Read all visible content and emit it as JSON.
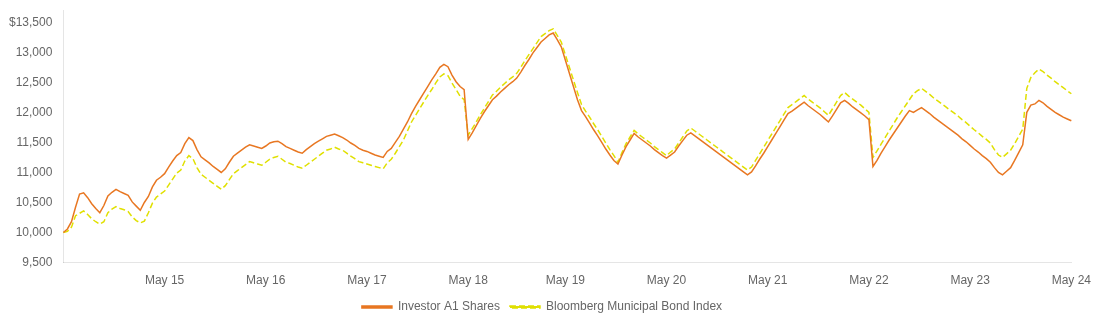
{
  "chart_data": {
    "type": "line",
    "categories": [
      null,
      null,
      null,
      null,
      null,
      null,
      null,
      null,
      null,
      null,
      null,
      null,
      null,
      null,
      null,
      null,
      null,
      null,
      null,
      null,
      null,
      null,
      null,
      null,
      null,
      "May 15",
      null,
      null,
      null,
      null,
      null,
      null,
      null,
      null,
      null,
      null,
      null,
      null,
      null,
      null,
      null,
      null,
      null,
      null,
      null,
      null,
      null,
      null,
      null,
      null,
      "May 16",
      null,
      null,
      null,
      null,
      null,
      null,
      null,
      null,
      null,
      null,
      null,
      null,
      null,
      null,
      null,
      null,
      null,
      null,
      null,
      null,
      null,
      null,
      null,
      null,
      "May 17",
      null,
      null,
      null,
      null,
      null,
      null,
      null,
      null,
      null,
      null,
      null,
      null,
      null,
      null,
      null,
      null,
      null,
      null,
      null,
      null,
      null,
      null,
      null,
      null,
      "May 18",
      null,
      null,
      null,
      null,
      null,
      null,
      null,
      null,
      null,
      null,
      null,
      null,
      null,
      null,
      null,
      null,
      null,
      null,
      null,
      null,
      null,
      null,
      null,
      "May 19",
      null,
      null,
      null,
      null,
      null,
      null,
      null,
      null,
      null,
      null,
      null,
      null,
      null,
      null,
      null,
      null,
      null,
      null,
      null,
      null,
      null,
      null,
      null,
      null,
      "May 20",
      null,
      null,
      null,
      null,
      null,
      null,
      null,
      null,
      null,
      null,
      null,
      null,
      null,
      null,
      null,
      null,
      null,
      null,
      null,
      null,
      null,
      null,
      null,
      null,
      "May 21",
      null,
      null,
      null,
      null,
      null,
      null,
      null,
      null,
      null,
      null,
      null,
      null,
      null,
      null,
      null,
      null,
      null,
      null,
      null,
      null,
      null,
      null,
      null,
      null,
      "May 22",
      null,
      null,
      null,
      null,
      null,
      null,
      null,
      null,
      null,
      null,
      null,
      null,
      null,
      null,
      null,
      null,
      null,
      null,
      null,
      null,
      null,
      null,
      null,
      null,
      "May 23",
      null,
      null,
      null,
      null,
      null,
      null,
      null,
      null,
      null,
      null,
      null,
      null,
      null,
      null,
      null,
      null,
      null,
      null,
      null,
      null,
      null,
      null,
      null,
      null,
      "May 24"
    ],
    "series": [
      {
        "name": "Investor A1 Shares",
        "color": "#E87722",
        "line_style": "solid",
        "values": [
          10000,
          10060,
          10180,
          10420,
          10640,
          10660,
          10580,
          10480,
          10400,
          10330,
          10450,
          10610,
          10670,
          10720,
          10680,
          10650,
          10620,
          10510,
          10440,
          10370,
          10500,
          10600,
          10760,
          10870,
          10920,
          10980,
          11090,
          11190,
          11280,
          11330,
          11480,
          11580,
          11530,
          11380,
          11260,
          11210,
          11160,
          11100,
          11050,
          11000,
          11060,
          11170,
          11270,
          11320,
          11370,
          11420,
          11460,
          11440,
          11420,
          11400,
          11440,
          11490,
          11510,
          11520,
          11480,
          11430,
          11400,
          11370,
          11340,
          11320,
          11380,
          11430,
          11480,
          11520,
          11560,
          11600,
          11620,
          11640,
          11610,
          11580,
          11540,
          11490,
          11450,
          11400,
          11370,
          11350,
          11320,
          11290,
          11270,
          11250,
          11350,
          11400,
          11500,
          11600,
          11720,
          11840,
          11980,
          12100,
          12210,
          12320,
          12430,
          12540,
          12640,
          12750,
          12800,
          12760,
          12620,
          12510,
          12430,
          12380,
          11550,
          11660,
          11780,
          11900,
          12010,
          12110,
          12210,
          12270,
          12340,
          12400,
          12460,
          12510,
          12570,
          12670,
          12780,
          12880,
          12990,
          13080,
          13170,
          13230,
          13290,
          13320,
          13210,
          13090,
          12870,
          12650,
          12430,
          12210,
          12030,
          11930,
          11820,
          11710,
          11610,
          11500,
          11390,
          11290,
          11200,
          11140,
          11290,
          11430,
          11540,
          11650,
          11590,
          11540,
          11490,
          11440,
          11380,
          11330,
          11280,
          11240,
          11290,
          11340,
          11440,
          11530,
          11620,
          11660,
          11610,
          11560,
          11510,
          11460,
          11410,
          11360,
          11310,
          11260,
          11210,
          11160,
          11110,
          11060,
          11010,
          10960,
          11010,
          11110,
          11220,
          11320,
          11430,
          11540,
          11650,
          11760,
          11870,
          11980,
          12020,
          12070,
          12120,
          12170,
          12110,
          12060,
          12010,
          11960,
          11900,
          11840,
          11940,
          12050,
          12160,
          12200,
          12150,
          12090,
          12040,
          11990,
          11940,
          11880,
          11100,
          11200,
          11320,
          11430,
          11540,
          11640,
          11740,
          11840,
          11940,
          12030,
          12000,
          12040,
          12080,
          12030,
          11980,
          11920,
          11870,
          11820,
          11770,
          11720,
          11670,
          11620,
          11560,
          11510,
          11450,
          11390,
          11340,
          11280,
          11230,
          11170,
          11080,
          11000,
          10960,
          11020,
          11080,
          11200,
          11330,
          11460,
          12000,
          12120,
          12140,
          12200,
          12160,
          12100,
          12050,
          12000,
          11960,
          11920,
          11890,
          11860
        ]
      },
      {
        "name": "Bloomberg Municipal Bond Index",
        "color": "#E0E000",
        "line_style": "dashed",
        "values": [
          10000,
          10020,
          10090,
          10280,
          10320,
          10360,
          10300,
          10230,
          10180,
          10140,
          10180,
          10330,
          10390,
          10430,
          10400,
          10380,
          10350,
          10260,
          10200,
          10160,
          10190,
          10330,
          10490,
          10590,
          10640,
          10690,
          10790,
          10890,
          10990,
          11040,
          11190,
          11280,
          11230,
          11080,
          10970,
          10920,
          10870,
          10820,
          10770,
          10720,
          10780,
          10880,
          10980,
          11030,
          11080,
          11130,
          11180,
          11160,
          11140,
          11120,
          11170,
          11220,
          11250,
          11270,
          11220,
          11170,
          11150,
          11120,
          11090,
          11070,
          11120,
          11170,
          11220,
          11270,
          11320,
          11370,
          11390,
          11420,
          11390,
          11370,
          11320,
          11270,
          11230,
          11180,
          11160,
          11140,
          11120,
          11100,
          11080,
          11060,
          11160,
          11220,
          11320,
          11430,
          11540,
          11690,
          11840,
          11950,
          12060,
          12170,
          12280,
          12380,
          12490,
          12590,
          12640,
          12610,
          12490,
          12380,
          12270,
          12210,
          11620,
          11730,
          11840,
          11960,
          12070,
          12180,
          12290,
          12350,
          12420,
          12480,
          12540,
          12590,
          12650,
          12750,
          12860,
          12960,
          13060,
          13160,
          13260,
          13310,
          13360,
          13390,
          13280,
          13170,
          12960,
          12750,
          12540,
          12330,
          12130,
          12020,
          11920,
          11810,
          11710,
          11600,
          11490,
          11380,
          11280,
          11170,
          11330,
          11480,
          11590,
          11700,
          11640,
          11590,
          11540,
          11490,
          11430,
          11380,
          11330,
          11280,
          11340,
          11390,
          11490,
          11590,
          11690,
          11740,
          11690,
          11640,
          11590,
          11540,
          11490,
          11440,
          11390,
          11340,
          11290,
          11240,
          11190,
          11140,
          11090,
          11040,
          11090,
          11200,
          11310,
          11420,
          11530,
          11640,
          11750,
          11860,
          11970,
          12080,
          12130,
          12180,
          12230,
          12280,
          12220,
          12170,
          12120,
          12070,
          12010,
          11950,
          12060,
          12170,
          12280,
          12330,
          12270,
          12220,
          12170,
          12120,
          12060,
          12000,
          11250,
          11360,
          11470,
          11580,
          11690,
          11800,
          11910,
          12010,
          12110,
          12210,
          12310,
          12360,
          12400,
          12350,
          12300,
          12240,
          12190,
          12140,
          12090,
          12040,
          11990,
          11940,
          11880,
          11830,
          11770,
          11710,
          11660,
          11600,
          11550,
          11490,
          11380,
          11290,
          11250,
          11310,
          11370,
          11480,
          11600,
          11720,
          12400,
          12580,
          12660,
          12720,
          12680,
          12620,
          12570,
          12510,
          12460,
          12410,
          12360,
          12310
        ]
      }
    ],
    "ylim": [
      9500,
      13700
    ],
    "yticks": [
      {
        "value": 9500,
        "label": "9,500"
      },
      {
        "value": 10000,
        "label": "10,000"
      },
      {
        "value": 10500,
        "label": "10,500"
      },
      {
        "value": 11000,
        "label": "11,000"
      },
      {
        "value": 11500,
        "label": "11,500"
      },
      {
        "value": 12000,
        "label": "12,000"
      },
      {
        "value": 12500,
        "label": "12,500"
      },
      {
        "value": 13000,
        "label": "13,000"
      },
      {
        "value": 13500,
        "label": "$13,500"
      }
    ],
    "grid": false,
    "legend": "bottom"
  }
}
